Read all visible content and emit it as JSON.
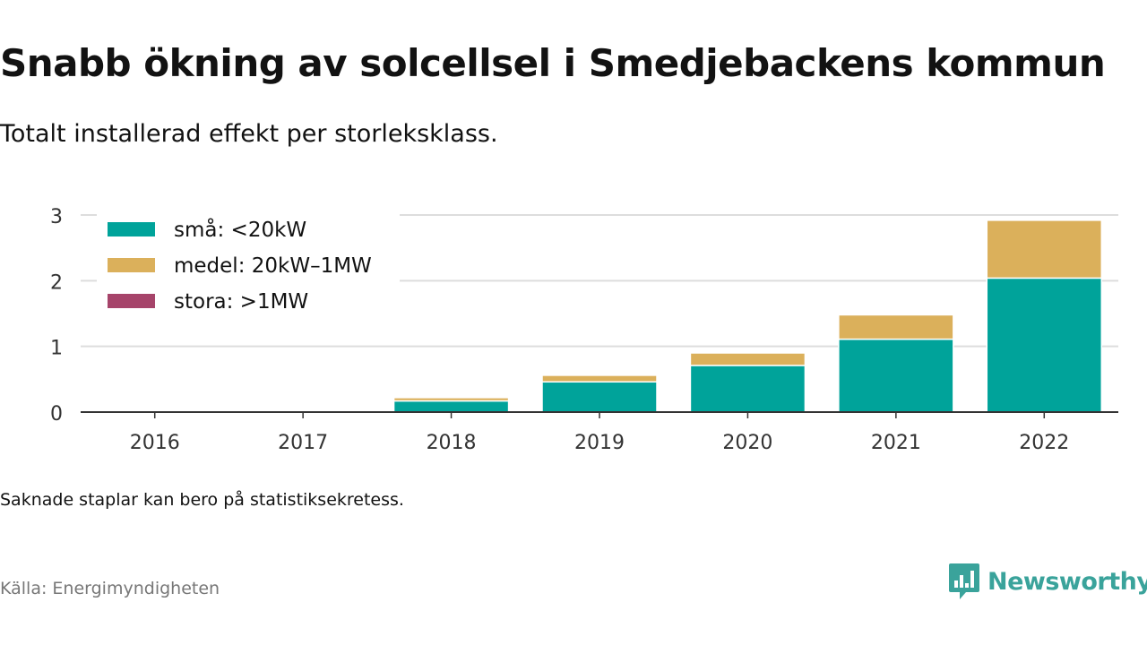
{
  "title": "Snabb ökning av solcellsel i Smedjebackens kommun",
  "subtitle": "Totalt installerad effekt per storleksklass.",
  "note": "Saknade staplar kan bero på statistiksekretess.",
  "source": "Källa: Energimyndigheten",
  "brand": "Newsworthy",
  "colors": {
    "small": "#00a39a",
    "medium": "#dbb05b",
    "large": "#a6446a",
    "grid": "#dddddd",
    "axis": "#333333",
    "brand": "#3aa39b"
  },
  "chart_data": {
    "type": "bar",
    "stacked": true,
    "categories": [
      "2016",
      "2017",
      "2018",
      "2019",
      "2020",
      "2021",
      "2022"
    ],
    "series": [
      {
        "name": "små: <20kW",
        "color": "#00a39a",
        "values": [
          0,
          0,
          0.17,
          0.46,
          0.71,
          1.11,
          2.04
        ]
      },
      {
        "name": "medel: 20kW–1MW",
        "color": "#dbb05b",
        "values": [
          0,
          0,
          0.05,
          0.1,
          0.19,
          0.37,
          0.88
        ]
      },
      {
        "name": "stora: >1MW",
        "color": "#a6446a",
        "values": [
          0,
          0,
          0,
          0,
          0,
          0,
          0
        ]
      }
    ],
    "ylim": [
      0,
      3
    ],
    "yticks": [
      0,
      1,
      2,
      3
    ],
    "xlabel": "",
    "ylabel": "",
    "grid": true,
    "legend_position": "top-left"
  }
}
